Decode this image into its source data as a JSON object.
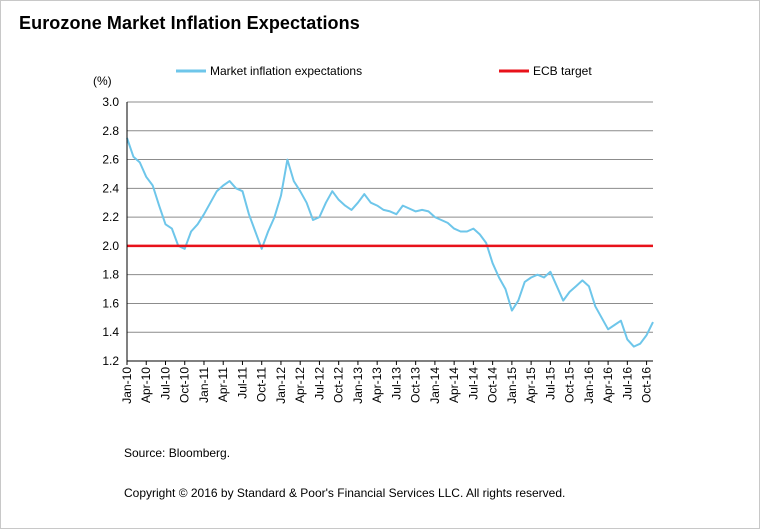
{
  "title": "Eurozone Market Inflation Expectations",
  "source": "Source: Bloomberg.",
  "copyright": "Copyright © 2016 by Standard & Poor's Financial Services LLC. All rights reserved.",
  "colors": {
    "series": "#6ec6ea",
    "target": "#e8121a",
    "grid": "#8c8c8c"
  },
  "chart_data": {
    "type": "line",
    "title": "Eurozone Market Inflation Expectations",
    "ylabel": "(%)",
    "xlabel": "",
    "ylim": [
      1.2,
      3.0
    ],
    "yticks": [
      "1.2",
      "1.4",
      "1.6",
      "1.8",
      "2.0",
      "2.2",
      "2.4",
      "2.6",
      "2.8",
      "3.0"
    ],
    "xticks": [
      "Jan-10",
      "Apr-10",
      "Jul-10",
      "Oct-10",
      "Jan-11",
      "Apr-11",
      "Jul-11",
      "Oct-11",
      "Jan-12",
      "Apr-12",
      "Jul-12",
      "Oct-12",
      "Jan-13",
      "Apr-13",
      "Jul-13",
      "Oct-13",
      "Jan-14",
      "Apr-14",
      "Jul-14",
      "Oct-14",
      "Jan-15",
      "Apr-15",
      "Jul-15",
      "Oct-15",
      "Jan-16",
      "Apr-16",
      "Jul-16",
      "Oct-16"
    ],
    "legend_position": "top",
    "grid": true,
    "series": [
      {
        "name": "Market inflation expectations",
        "style": "line",
        "x": [
          "Jan-10",
          "Feb-10",
          "Mar-10",
          "Apr-10",
          "May-10",
          "Jun-10",
          "Jul-10",
          "Aug-10",
          "Sep-10",
          "Oct-10",
          "Nov-10",
          "Dec-10",
          "Jan-11",
          "Feb-11",
          "Mar-11",
          "Apr-11",
          "May-11",
          "Jun-11",
          "Jul-11",
          "Aug-11",
          "Sep-11",
          "Oct-11",
          "Nov-11",
          "Dec-11",
          "Jan-12",
          "Feb-12",
          "Mar-12",
          "Apr-12",
          "May-12",
          "Jun-12",
          "Jul-12",
          "Aug-12",
          "Sep-12",
          "Oct-12",
          "Nov-12",
          "Dec-12",
          "Jan-13",
          "Feb-13",
          "Mar-13",
          "Apr-13",
          "May-13",
          "Jun-13",
          "Jul-13",
          "Aug-13",
          "Sep-13",
          "Oct-13",
          "Nov-13",
          "Dec-13",
          "Jan-14",
          "Feb-14",
          "Mar-14",
          "Apr-14",
          "May-14",
          "Jun-14",
          "Jul-14",
          "Aug-14",
          "Sep-14",
          "Oct-14",
          "Nov-14",
          "Dec-14",
          "Jan-15",
          "Feb-15",
          "Mar-15",
          "Apr-15",
          "May-15",
          "Jun-15",
          "Jul-15",
          "Aug-15",
          "Sep-15",
          "Oct-15",
          "Nov-15",
          "Dec-15",
          "Jan-16",
          "Feb-16",
          "Mar-16",
          "Apr-16",
          "May-16",
          "Jun-16",
          "Jul-16",
          "Aug-16",
          "Sep-16",
          "Oct-16",
          "Nov-16"
        ],
        "values": [
          2.75,
          2.62,
          2.58,
          2.48,
          2.42,
          2.28,
          2.15,
          2.12,
          2.0,
          1.98,
          2.1,
          2.15,
          2.22,
          2.3,
          2.38,
          2.42,
          2.45,
          2.4,
          2.38,
          2.22,
          2.1,
          1.98,
          2.1,
          2.2,
          2.35,
          2.6,
          2.45,
          2.38,
          2.3,
          2.18,
          2.2,
          2.3,
          2.38,
          2.32,
          2.28,
          2.25,
          2.3,
          2.36,
          2.3,
          2.28,
          2.25,
          2.24,
          2.22,
          2.28,
          2.26,
          2.24,
          2.25,
          2.24,
          2.2,
          2.18,
          2.16,
          2.12,
          2.1,
          2.1,
          2.12,
          2.08,
          2.02,
          1.88,
          1.78,
          1.7,
          1.55,
          1.62,
          1.75,
          1.78,
          1.8,
          1.78,
          1.82,
          1.72,
          1.62,
          1.68,
          1.72,
          1.76,
          1.72,
          1.58,
          1.5,
          1.42,
          1.45,
          1.48,
          1.35,
          1.3,
          1.32,
          1.38,
          1.47
        ]
      },
      {
        "name": "ECB target",
        "style": "line",
        "x": [
          "Jan-10",
          "Nov-16"
        ],
        "values": [
          2.0,
          2.0
        ]
      }
    ]
  }
}
